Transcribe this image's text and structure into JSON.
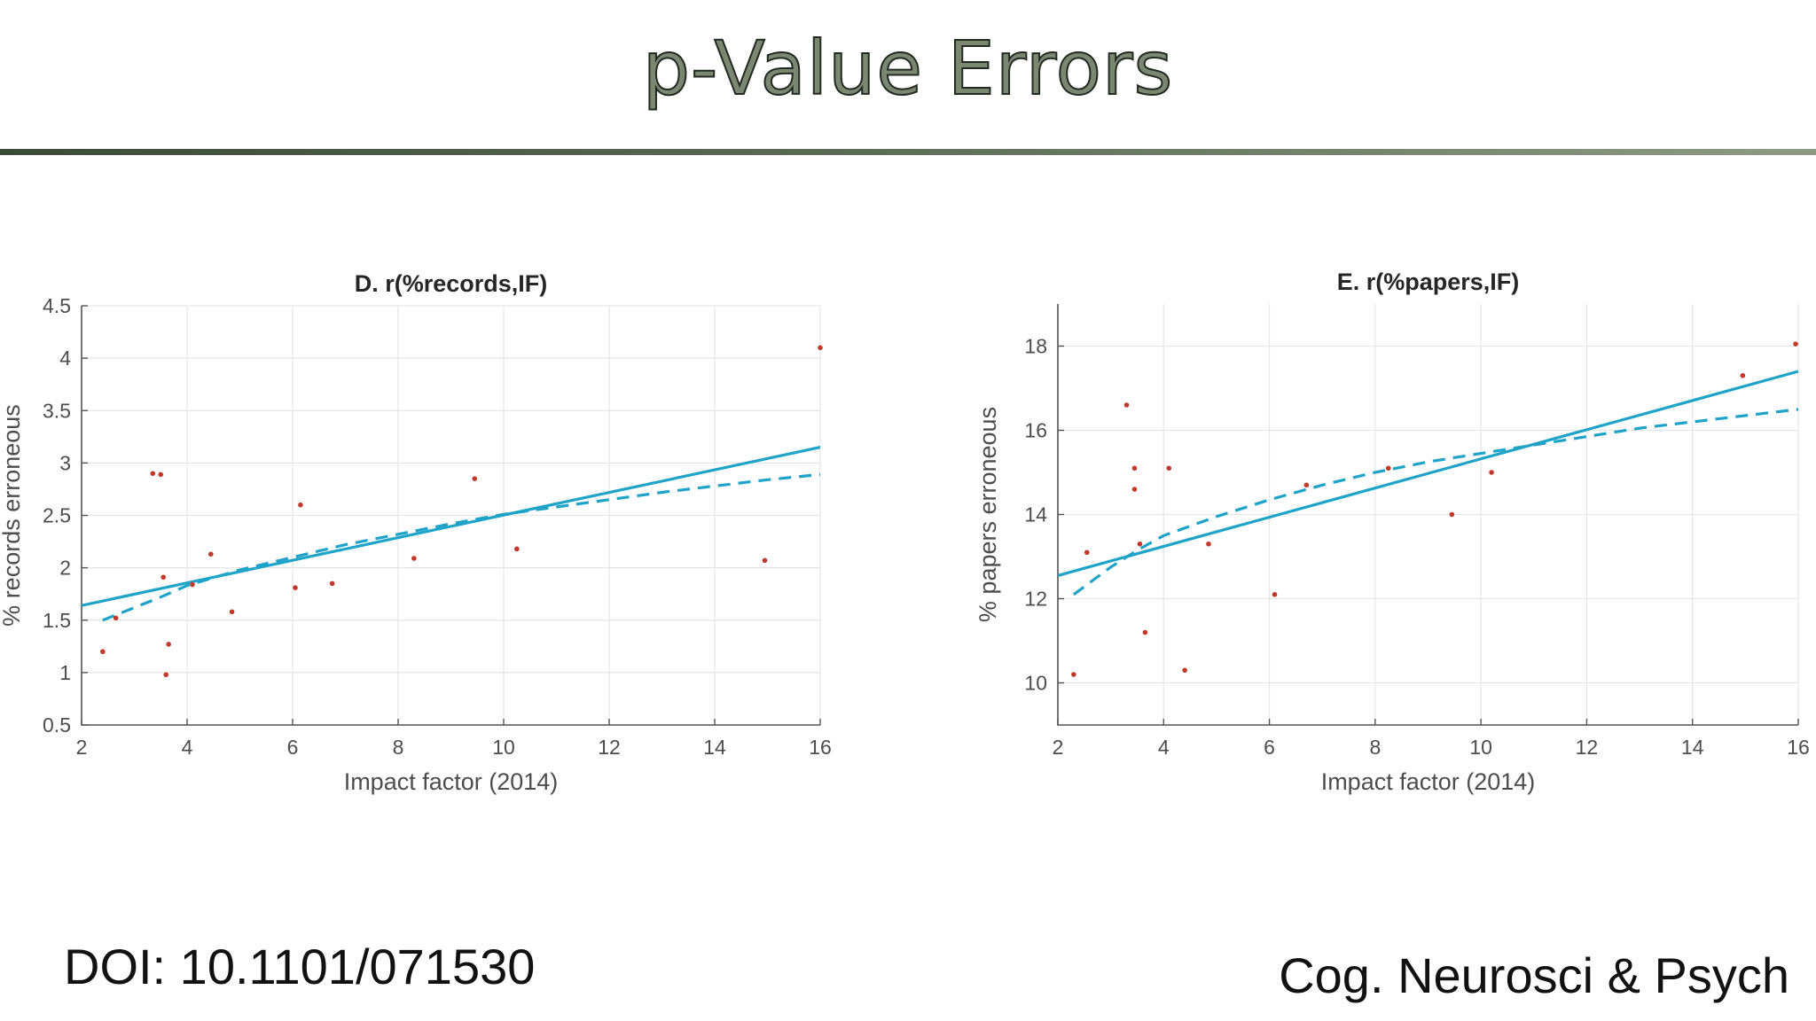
{
  "slide": {
    "title": "p-Value Errors",
    "doi": "DOI: 10.1101/071530",
    "source": "Cog. Neurosci & Psych"
  },
  "colors": {
    "title_fill": "#7b8673",
    "title_outline": "#232a21",
    "rule": "#4a5a47",
    "fit": "#1fa3c9",
    "point": "#c0392b",
    "grid": "#e6e6e6",
    "axis": "#555555"
  },
  "chart_data": [
    {
      "type": "scatter",
      "title": "D. r(%records,IF)",
      "xlabel": "Impact factor (2014)",
      "ylabel": "% records erroneous",
      "xlim": [
        2,
        16
      ],
      "ylim": [
        0.5,
        4.5
      ],
      "xticks": [
        2,
        4,
        6,
        8,
        10,
        12,
        14,
        16
      ],
      "yticks": [
        0.5,
        1,
        1.5,
        2,
        2.5,
        3,
        3.5,
        4,
        4.5
      ],
      "ytick_labels": [
        "0.5",
        "1",
        "1.5",
        "2",
        "2.5",
        "3",
        "3.5",
        "4",
        "4.5"
      ],
      "grid": true,
      "x": [
        2.4,
        2.65,
        3.35,
        3.5,
        3.55,
        3.6,
        3.65,
        4.1,
        4.45,
        4.85,
        6.05,
        6.15,
        6.75,
        8.3,
        9.45,
        10.25,
        14.95,
        16.0
      ],
      "y": [
        1.2,
        1.52,
        2.9,
        2.89,
        1.91,
        0.98,
        1.27,
        1.84,
        2.13,
        1.58,
        1.81,
        2.6,
        1.85,
        2.09,
        2.85,
        2.18,
        2.07,
        4.1
      ],
      "fits": [
        {
          "kind": "linear",
          "style": "solid",
          "x": [
            2,
            16
          ],
          "y": [
            1.64,
            3.15
          ]
        },
        {
          "kind": "log",
          "style": "dashed",
          "x": [
            2.4,
            3,
            3.5,
            4,
            5,
            6,
            7,
            8,
            9,
            10,
            11,
            12,
            13,
            14,
            15,
            16
          ],
          "y": [
            1.5,
            1.62,
            1.72,
            1.83,
            1.98,
            2.1,
            2.22,
            2.32,
            2.42,
            2.51,
            2.58,
            2.65,
            2.72,
            2.78,
            2.84,
            2.89
          ]
        }
      ]
    },
    {
      "type": "scatter",
      "title": "E. r(%papers,IF)",
      "xlabel": "Impact factor (2014)",
      "ylabel": "% papers erroneous",
      "xlim": [
        2,
        16
      ],
      "ylim": [
        9,
        19
      ],
      "xticks": [
        2,
        4,
        6,
        8,
        10,
        12,
        14,
        16
      ],
      "yticks": [
        10,
        12,
        14,
        16,
        18
      ],
      "ytick_labels": [
        "10",
        "12",
        "14",
        "16",
        "18"
      ],
      "grid": true,
      "x": [
        2.3,
        2.55,
        3.3,
        3.45,
        3.45,
        3.55,
        3.65,
        4.1,
        4.4,
        4.85,
        6.1,
        6.7,
        8.25,
        9.45,
        10.2,
        14.95,
        15.95
      ],
      "y": [
        10.2,
        13.1,
        16.6,
        15.1,
        14.6,
        13.3,
        11.2,
        15.1,
        10.3,
        13.3,
        12.1,
        14.7,
        15.1,
        14.0,
        15.0,
        17.3,
        18.05
      ],
      "fits": [
        {
          "kind": "linear",
          "style": "solid",
          "x": [
            2,
            16
          ],
          "y": [
            12.55,
            17.4
          ]
        },
        {
          "kind": "log",
          "style": "dashed",
          "x": [
            2.3,
            3,
            3.5,
            4,
            5,
            6,
            7,
            8,
            9,
            10,
            11,
            12,
            13,
            14,
            15,
            16
          ],
          "y": [
            12.1,
            12.75,
            13.15,
            13.5,
            13.95,
            14.35,
            14.7,
            15.0,
            15.25,
            15.45,
            15.65,
            15.85,
            16.05,
            16.2,
            16.35,
            16.5
          ]
        }
      ]
    }
  ]
}
